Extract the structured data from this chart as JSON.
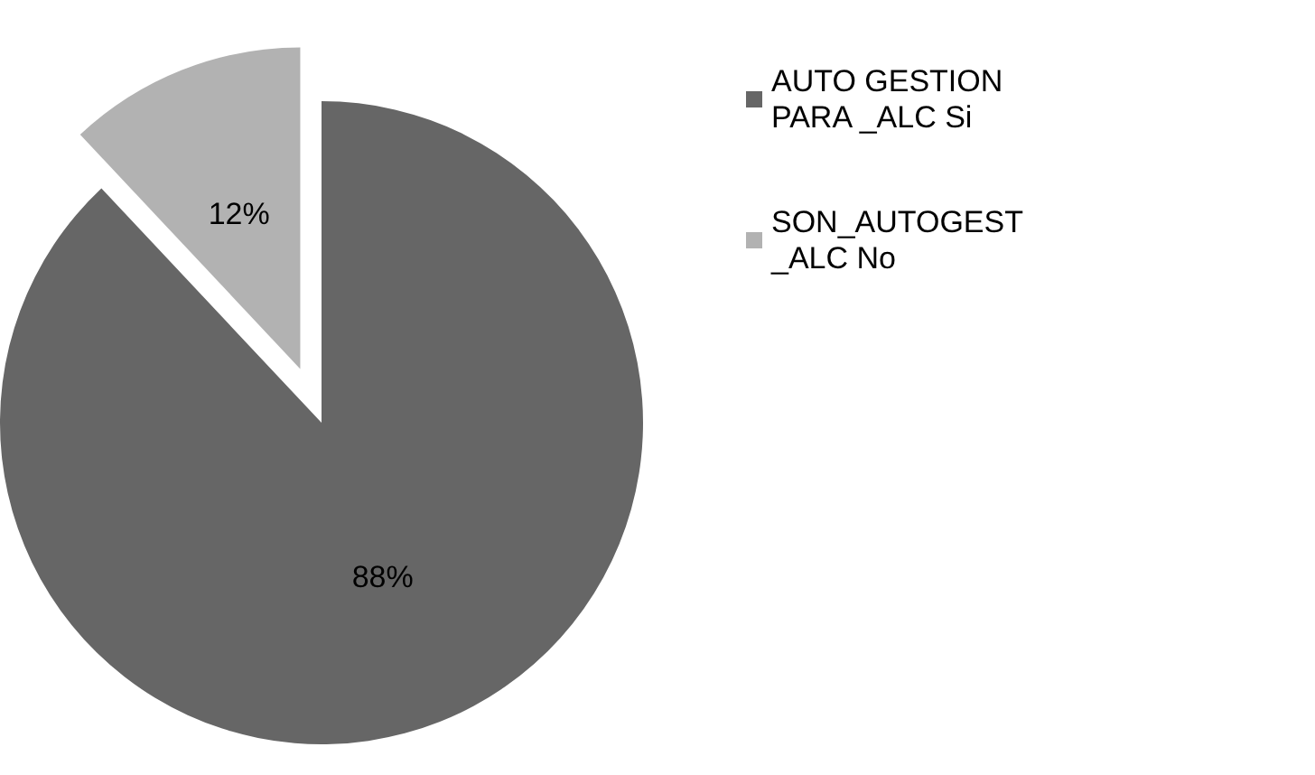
{
  "chart_data": {
    "type": "pie",
    "categories": [
      "AUTO GESTION PARA _ALC Si",
      "SON_AUTOGEST_ALC No"
    ],
    "values": [
      88,
      12
    ],
    "colors": [
      "#666666",
      "#b2b2b2"
    ],
    "value_labels": [
      "88%",
      "12%"
    ],
    "legend": "right"
  }
}
